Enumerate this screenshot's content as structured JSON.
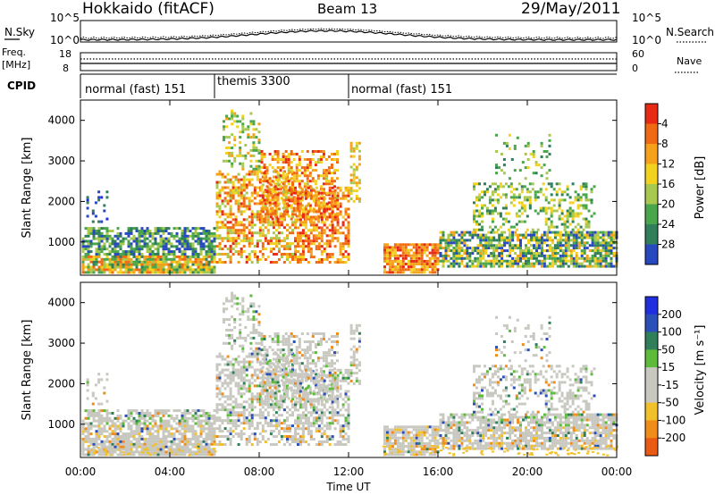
{
  "header": {
    "station": "Hokkaido (fitACF)",
    "beam": "Beam 13",
    "date": "29/May/2011"
  },
  "noise_panel": {
    "left_label": "N.Sky",
    "right_label": "N.Search",
    "ticks": [
      "10^5",
      "10^0"
    ]
  },
  "freq_panel": {
    "left_label_line1": "Freq.",
    "left_label_line2": "[MHz]",
    "right_label": "Nave",
    "left_ticks": [
      "18",
      "8"
    ],
    "right_ticks": [
      "60",
      "0"
    ]
  },
  "cpid_panel": {
    "label": "CPID",
    "modes": [
      "normal (fast) 151",
      "themis 3300",
      "normal (fast) 151"
    ],
    "mode_start_hours": [
      0,
      6,
      12
    ]
  },
  "colors": {
    "power_scale": [
      "#1f2fe0",
      "#2848c0",
      "#2e7f5a",
      "#4aa64a",
      "#a8c850",
      "#f2d21e",
      "#f5a21a",
      "#f06a14",
      "#e82a14"
    ],
    "velocity_scale": [
      "#1f2fe0",
      "#2b4fb8",
      "#2e7f5a",
      "#5dbb3a",
      "#c8c8c0",
      "#c8c8c0",
      "#f2c02a",
      "#f08c1a",
      "#ea5a14",
      "#e01e10"
    ]
  },
  "chart_data": [
    {
      "type": "heatmap",
      "title": "",
      "xlabel": "",
      "ylabel": "Slant Range [km]",
      "xlim": [
        0,
        24
      ],
      "ylim": [
        180,
        4500
      ],
      "x_tick_labels": [
        "00:00",
        "04:00",
        "08:00",
        "12:00",
        "16:00",
        "20:00",
        "00:00"
      ],
      "y_tick_labels": [
        "1000",
        "2000",
        "3000",
        "4000"
      ],
      "colorbar_label": "Power [dB]",
      "colorbar_ticks": [
        "4",
        "8",
        "12",
        "16",
        "20",
        "24",
        "28"
      ],
      "colorbar_range": [
        0,
        30
      ]
    },
    {
      "type": "heatmap",
      "title": "",
      "xlabel": "Time UT",
      "ylabel": "Slant Range [km]",
      "xlim": [
        0,
        24
      ],
      "ylim": [
        180,
        4500
      ],
      "x_tick_labels": [
        "00:00",
        "04:00",
        "08:00",
        "12:00",
        "16:00",
        "20:00",
        "00:00"
      ],
      "y_tick_labels": [
        "1000",
        "2000",
        "3000",
        "4000"
      ],
      "colorbar_label": "Velocity [m s⁻¹]",
      "colorbar_ticks": [
        "200",
        "100",
        "50",
        "15",
        "-15",
        "-50",
        "-100",
        "-200"
      ],
      "colorbar_range": [
        -250,
        250
      ]
    }
  ]
}
